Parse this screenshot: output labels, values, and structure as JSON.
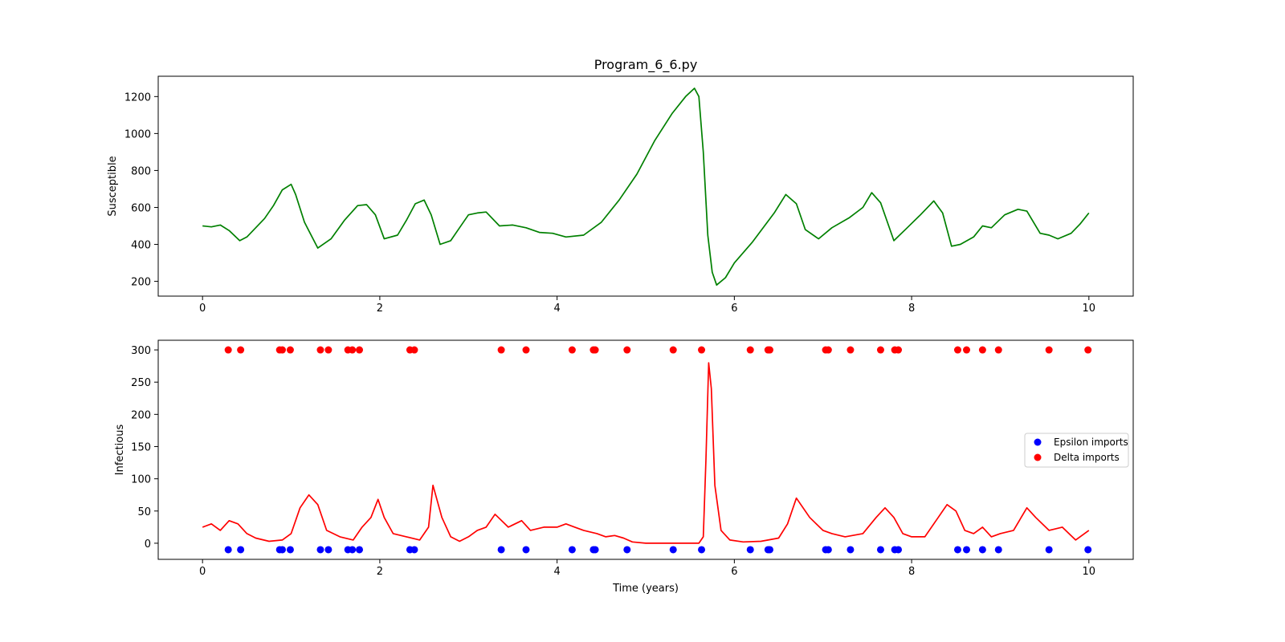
{
  "chart_data": [
    {
      "type": "line",
      "title": "Program_6_6.py",
      "xlabel": "",
      "ylabel": "Susceptible",
      "xlim": [
        -0.5,
        10.5
      ],
      "ylim": [
        120,
        1310
      ],
      "xticks": [
        0,
        2,
        4,
        6,
        8,
        10
      ],
      "yticks": [
        200,
        400,
        600,
        800,
        1000,
        1200
      ],
      "grid": false,
      "series": [
        {
          "color": "#008000",
          "x": [
            0,
            0.1,
            0.2,
            0.3,
            0.42,
            0.5,
            0.6,
            0.7,
            0.8,
            0.9,
            1.0,
            1.05,
            1.15,
            1.3,
            1.45,
            1.6,
            1.75,
            1.85,
            1.95,
            2.05,
            2.2,
            2.3,
            2.4,
            2.5,
            2.58,
            2.68,
            2.8,
            2.9,
            3.0,
            3.1,
            3.2,
            3.35,
            3.5,
            3.65,
            3.8,
            3.95,
            4.1,
            4.3,
            4.5,
            4.7,
            4.9,
            5.1,
            5.3,
            5.45,
            5.55,
            5.6,
            5.65,
            5.7,
            5.75,
            5.8,
            5.9,
            6.0,
            6.2,
            6.45,
            6.58,
            6.7,
            6.8,
            6.95,
            7.1,
            7.3,
            7.45,
            7.55,
            7.65,
            7.8,
            7.95,
            8.1,
            8.25,
            8.35,
            8.45,
            8.55,
            8.7,
            8.8,
            8.9,
            9.05,
            9.2,
            9.3,
            9.45,
            9.55,
            9.65,
            9.8,
            9.9,
            10.0
          ],
          "values": [
            500,
            495,
            505,
            475,
            420,
            440,
            490,
            540,
            610,
            695,
            725,
            670,
            520,
            380,
            430,
            530,
            610,
            615,
            560,
            430,
            450,
            530,
            620,
            640,
            560,
            400,
            420,
            490,
            560,
            570,
            575,
            500,
            505,
            490,
            465,
            460,
            440,
            450,
            520,
            640,
            780,
            960,
            1110,
            1200,
            1245,
            1200,
            900,
            450,
            250,
            180,
            220,
            300,
            410,
            570,
            670,
            620,
            480,
            430,
            490,
            545,
            600,
            680,
            625,
            420,
            490,
            560,
            635,
            570,
            390,
            400,
            440,
            500,
            490,
            560,
            590,
            580,
            460,
            450,
            430,
            460,
            510,
            570
          ]
        }
      ]
    },
    {
      "type": "line",
      "title": "",
      "xlabel": "Time (years)",
      "ylabel": "Infectious",
      "xlim": [
        -0.5,
        10.5
      ],
      "ylim": [
        -25,
        315
      ],
      "xticks": [
        0,
        2,
        4,
        6,
        8,
        10
      ],
      "yticks": [
        0,
        50,
        100,
        150,
        200,
        250,
        300
      ],
      "grid": false,
      "legend_position": "center-right",
      "series": [
        {
          "color": "#ff0000",
          "x": [
            0,
            0.1,
            0.2,
            0.3,
            0.4,
            0.5,
            0.6,
            0.75,
            0.9,
            1.0,
            1.1,
            1.2,
            1.3,
            1.4,
            1.55,
            1.7,
            1.8,
            1.9,
            1.98,
            2.05,
            2.15,
            2.3,
            2.45,
            2.55,
            2.6,
            2.7,
            2.8,
            2.9,
            3.0,
            3.1,
            3.2,
            3.3,
            3.45,
            3.6,
            3.7,
            3.85,
            4.0,
            4.1,
            4.2,
            4.3,
            4.45,
            4.55,
            4.65,
            4.75,
            4.85,
            5.0,
            5.3,
            5.6,
            5.65,
            5.68,
            5.71,
            5.74,
            5.78,
            5.85,
            5.95,
            6.1,
            6.3,
            6.5,
            6.6,
            6.7,
            6.85,
            7.0,
            7.1,
            7.25,
            7.45,
            7.6,
            7.7,
            7.8,
            7.9,
            8.0,
            8.15,
            8.3,
            8.4,
            8.5,
            8.6,
            8.7,
            8.8,
            8.9,
            9.0,
            9.15,
            9.3,
            9.4,
            9.55,
            9.7,
            9.85,
            10.0
          ],
          "values": [
            25,
            30,
            20,
            35,
            30,
            15,
            8,
            3,
            5,
            15,
            55,
            75,
            60,
            20,
            10,
            5,
            25,
            40,
            68,
            40,
            15,
            10,
            5,
            25,
            90,
            40,
            10,
            3,
            10,
            20,
            25,
            45,
            25,
            35,
            20,
            25,
            25,
            30,
            25,
            20,
            15,
            10,
            12,
            8,
            2,
            0,
            0,
            0,
            10,
            130,
            280,
            240,
            90,
            20,
            5,
            2,
            3,
            8,
            30,
            70,
            40,
            20,
            15,
            10,
            15,
            40,
            55,
            40,
            15,
            10,
            10,
            40,
            60,
            50,
            20,
            15,
            25,
            10,
            15,
            20,
            55,
            40,
            20,
            25,
            5,
            20
          ]
        }
      ],
      "scatter": [
        {
          "name": "Epsilon imports",
          "color": "#0000ff",
          "y": -10,
          "x": [
            0.29,
            0.43,
            0.87,
            0.9,
            0.99,
            1.33,
            1.42,
            1.64,
            1.69,
            1.77,
            2.34,
            2.39,
            3.37,
            3.65,
            4.17,
            4.41,
            4.43,
            4.79,
            5.31,
            5.63,
            6.18,
            6.38,
            6.4,
            7.03,
            7.06,
            7.31,
            7.65,
            7.81,
            7.85,
            8.52,
            8.62,
            8.8,
            8.98,
            9.55,
            9.99
          ]
        },
        {
          "name": "Delta imports",
          "color": "#ff0000",
          "y": 300,
          "x": [
            0.29,
            0.43,
            0.87,
            0.9,
            0.99,
            1.33,
            1.42,
            1.64,
            1.69,
            1.77,
            2.34,
            2.39,
            3.37,
            3.65,
            4.17,
            4.41,
            4.43,
            4.79,
            5.31,
            5.63,
            6.18,
            6.38,
            6.4,
            7.03,
            7.06,
            7.31,
            7.65,
            7.81,
            7.85,
            8.52,
            8.62,
            8.8,
            8.98,
            9.55,
            9.99
          ]
        }
      ]
    }
  ]
}
